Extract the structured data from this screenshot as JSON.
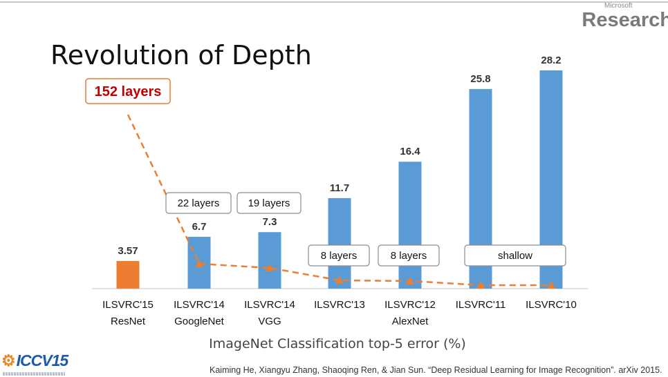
{
  "branding": {
    "company": "Microsoft",
    "lab": "Research",
    "conference": "ICCV15"
  },
  "slide": {
    "title": "Revolution of Depth",
    "citation": "Kaiming He, Xiangyu Zhang, Shaoqing Ren, & Jian Sun. “Deep Residual Learning for Image Recognition”. arXiv 2015."
  },
  "colors": {
    "resnet_bar": "#ed7d31",
    "other_bars": "#5b9bd5",
    "depth_line": "#ed7d31",
    "highlight_text": "#c00000"
  },
  "chart_data": {
    "type": "bar",
    "xlabel": "ImageNet Classification top-5 error (%)",
    "categories": [
      [
        "ILSVRC'15",
        "ResNet"
      ],
      [
        "ILSVRC'14",
        "GoogleNet"
      ],
      [
        "ILSVRC'14",
        "VGG"
      ],
      [
        "ILSVRC'13",
        ""
      ],
      [
        "ILSVRC'12",
        "AlexNet"
      ],
      [
        "ILSVRC'11",
        ""
      ],
      [
        "ILSVRC'10",
        ""
      ]
    ],
    "values": [
      3.57,
      6.7,
      7.3,
      11.7,
      16.4,
      25.8,
      28.2
    ],
    "value_labels": [
      "3.57",
      "6.7",
      "7.3",
      "11.7",
      "16.4",
      "25.8",
      "28.2"
    ],
    "ylim": [
      0,
      28.2
    ],
    "depth_annotations": [
      "152 layers",
      "22 layers",
      "19 layers",
      "8 layers",
      "8 layers",
      "shallow",
      "shallow"
    ],
    "depth_line_values": [
      152,
      22,
      19,
      8,
      8,
      0,
      0
    ]
  }
}
